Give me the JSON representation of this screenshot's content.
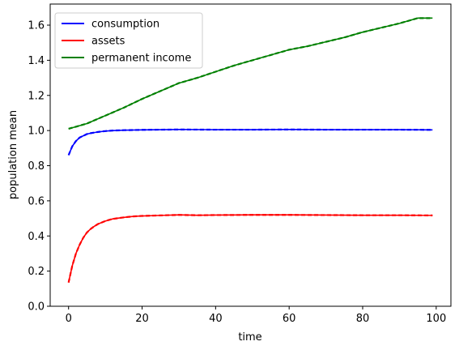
{
  "chart_data": {
    "type": "line",
    "title": "",
    "xlabel": "time",
    "ylabel": "population mean",
    "xlim": [
      -5,
      104
    ],
    "ylim": [
      0.0,
      1.72
    ],
    "x_ticks": [
      0,
      20,
      40,
      60,
      80,
      100
    ],
    "y_ticks": [
      0.0,
      0.2,
      0.4,
      0.6,
      0.8,
      1.0,
      1.2,
      1.4,
      1.6
    ],
    "x_tick_labels": [
      "0",
      "20",
      "40",
      "60",
      "80",
      "100"
    ],
    "y_tick_labels": [
      "0.0",
      "0.2",
      "0.4",
      "0.6",
      "0.8",
      "1.0",
      "1.2",
      "1.4",
      "1.6"
    ],
    "grid": false,
    "legend_position": "upper-left",
    "series": [
      {
        "name": "consumption",
        "color": "#0000ff",
        "x": [
          0,
          1,
          2,
          3,
          4,
          5,
          6,
          8,
          10,
          12,
          15,
          20,
          25,
          30,
          40,
          50,
          60,
          70,
          80,
          90,
          99
        ],
        "y": [
          0.86,
          0.91,
          0.94,
          0.96,
          0.97,
          0.98,
          0.985,
          0.992,
          0.997,
          1.0,
          1.002,
          1.004,
          1.005,
          1.006,
          1.005,
          1.005,
          1.006,
          1.005,
          1.005,
          1.005,
          1.004
        ]
      },
      {
        "name": "assets",
        "color": "#ff0000",
        "x": [
          0,
          1,
          2,
          3,
          4,
          5,
          6,
          7,
          8,
          10,
          12,
          14,
          16,
          18,
          20,
          25,
          30,
          35,
          40,
          50,
          60,
          70,
          80,
          90,
          99
        ],
        "y": [
          0.135,
          0.23,
          0.3,
          0.35,
          0.39,
          0.42,
          0.44,
          0.455,
          0.468,
          0.485,
          0.497,
          0.503,
          0.508,
          0.512,
          0.514,
          0.517,
          0.52,
          0.518,
          0.519,
          0.52,
          0.52,
          0.519,
          0.518,
          0.518,
          0.517
        ]
      },
      {
        "name": "permanent income",
        "color": "#008000",
        "x": [
          0,
          5,
          10,
          15,
          20,
          25,
          30,
          35,
          40,
          45,
          50,
          55,
          60,
          65,
          70,
          75,
          80,
          85,
          90,
          95,
          99
        ],
        "y": [
          1.01,
          1.04,
          1.085,
          1.13,
          1.18,
          1.225,
          1.27,
          1.3,
          1.335,
          1.37,
          1.4,
          1.43,
          1.46,
          1.48,
          1.505,
          1.53,
          1.56,
          1.585,
          1.61,
          1.64,
          1.64
        ]
      }
    ]
  }
}
